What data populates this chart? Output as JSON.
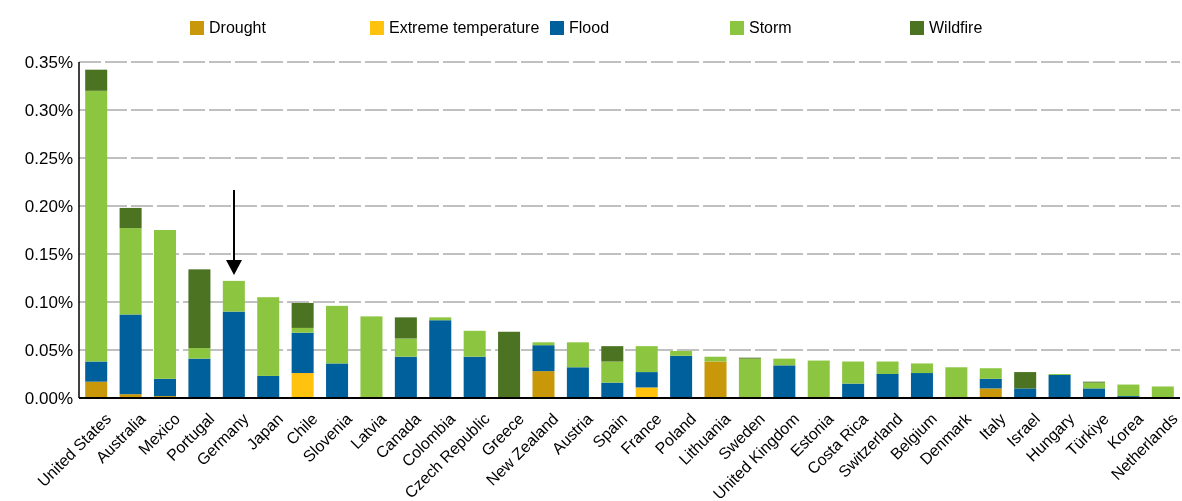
{
  "chart_data": {
    "type": "bar",
    "stacked": true,
    "categories": [
      "United States",
      "Australia",
      "Mexico",
      "Portugal",
      "Germany",
      "Japan",
      "Chile",
      "Slovenia",
      "Latvia",
      "Canada",
      "Colombia",
      "Czech Republic",
      "Greece",
      "New Zealand",
      "Austria",
      "Spain",
      "France",
      "Poland",
      "Lithuania",
      "Sweden",
      "United Kingdom",
      "Estonia",
      "Costa Rica",
      "Switzerland",
      "Belgium",
      "Denmark",
      "Italy",
      "Israel",
      "Hungary",
      "Türkiye",
      "Korea",
      "Netherlands"
    ],
    "series": [
      {
        "name": "Drought",
        "color": "#c8980a",
        "values": [
          0.017,
          0.004,
          0.002,
          0,
          0,
          0,
          0,
          0,
          0,
          0,
          0,
          0,
          0,
          0.028,
          0,
          0,
          0,
          0,
          0.038,
          0,
          0,
          0,
          0,
          0,
          0,
          0,
          0.01,
          0,
          0,
          0,
          0,
          0
        ]
      },
      {
        "name": "Extreme temperature",
        "color": "#ffc20e",
        "values": [
          0,
          0,
          0,
          0,
          0,
          0,
          0.026,
          0,
          0,
          0,
          0,
          0,
          0,
          0,
          0,
          0,
          0.011,
          0,
          0,
          0,
          0,
          0,
          0,
          0,
          0,
          0,
          0,
          0,
          0,
          0,
          0,
          0
        ]
      },
      {
        "name": "Flood",
        "color": "#00609c",
        "values": [
          0.021,
          0.083,
          0.018,
          0.041,
          0.09,
          0.023,
          0.042,
          0.036,
          0,
          0.043,
          0.081,
          0.043,
          0.001,
          0.027,
          0.032,
          0.016,
          0.016,
          0.044,
          0,
          0,
          0.034,
          0,
          0.015,
          0.025,
          0.026,
          0,
          0.01,
          0.01,
          0.024,
          0.01,
          0.002,
          0
        ]
      },
      {
        "name": "Storm",
        "color": "#8cc641",
        "values": [
          0.282,
          0.09,
          0.155,
          0.011,
          0.032,
          0.082,
          0.005,
          0.06,
          0.085,
          0.019,
          0.003,
          0.027,
          0,
          0.003,
          0.026,
          0.022,
          0.027,
          0.005,
          0.005,
          0.041,
          0.007,
          0.039,
          0.023,
          0.013,
          0.01,
          0.032,
          0.011,
          0,
          0.001,
          0.006,
          0.012,
          0.012
        ]
      },
      {
        "name": "Wildfire",
        "color": "#4b7322",
        "values": [
          0.022,
          0.021,
          0,
          0.082,
          0,
          0,
          0.026,
          0,
          0,
          0.022,
          0,
          0,
          0.068,
          0,
          0,
          0.016,
          0,
          0,
          0,
          0.001,
          0,
          0,
          0,
          0,
          0,
          0,
          0,
          0.017,
          0,
          0.001,
          0,
          0
        ]
      }
    ],
    "ylim": [
      0,
      0.35
    ],
    "yticks": [
      {
        "value": 0,
        "label": "0.00%"
      },
      {
        "value": 0.05,
        "label": "0.05%"
      },
      {
        "value": 0.1,
        "label": "0.10%"
      },
      {
        "value": 0.15,
        "label": "0.15%"
      },
      {
        "value": 0.2,
        "label": "0.20%"
      },
      {
        "value": 0.25,
        "label": "0.25%"
      },
      {
        "value": 0.3,
        "label": "0.30%"
      },
      {
        "value": 0.35,
        "label": "0.35%"
      }
    ],
    "grid": "y",
    "legend": "top"
  }
}
